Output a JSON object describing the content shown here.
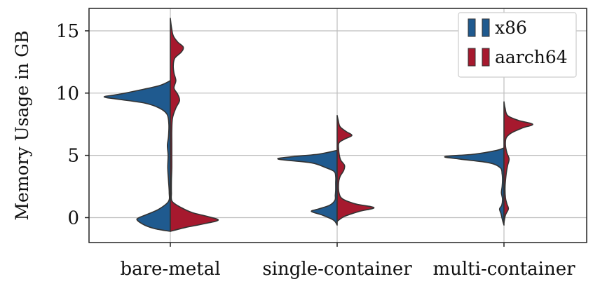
{
  "chart_data": {
    "type": "violin",
    "split": true,
    "ylabel": "Memory Usage in GB",
    "xlabel": "",
    "title": "",
    "ylim": [
      -2,
      16.8
    ],
    "yticks": [
      0,
      5,
      10,
      15
    ],
    "grid": true,
    "legend_position": "top-right",
    "categories": [
      "bare-metal",
      "single-container",
      "multi-container"
    ],
    "series": [
      {
        "name": "x86",
        "side": "left",
        "color": "#1f5a8f",
        "violins": [
          {
            "category": "bare-metal",
            "range": [
              -1.1,
              11.0
            ],
            "profile": [
              [
                -1.1,
                0.0
              ],
              [
                -0.9,
                0.04
              ],
              [
                -0.6,
                0.07
              ],
              [
                -0.2,
                0.09
              ],
              [
                0.0,
                0.085
              ],
              [
                0.3,
                0.06
              ],
              [
                0.7,
                0.03
              ],
              [
                1.3,
                0.005
              ],
              [
                2.0,
                0.003
              ],
              [
                3.0,
                0.005
              ],
              [
                4.0,
                0.007
              ],
              [
                5.0,
                0.006
              ],
              [
                5.8,
                0.008
              ],
              [
                6.5,
                0.005
              ],
              [
                7.5,
                0.004
              ],
              [
                8.3,
                0.009
              ],
              [
                8.8,
                0.03
              ],
              [
                9.2,
                0.07
              ],
              [
                9.5,
                0.14
              ],
              [
                9.7,
                0.18
              ],
              [
                9.9,
                0.14
              ],
              [
                10.2,
                0.09
              ],
              [
                10.6,
                0.03
              ],
              [
                11.0,
                0.0
              ]
            ]
          },
          {
            "category": "single-container",
            "range": [
              -0.6,
              5.4
            ],
            "profile": [
              [
                -0.6,
                0.0
              ],
              [
                -0.2,
                0.01
              ],
              [
                0.2,
                0.04
              ],
              [
                0.5,
                0.07
              ],
              [
                0.7,
                0.05
              ],
              [
                1.0,
                0.02
              ],
              [
                1.4,
                0.006
              ],
              [
                1.8,
                0.005
              ],
              [
                2.2,
                0.004
              ],
              [
                2.8,
                0.004
              ],
              [
                3.3,
                0.004
              ],
              [
                3.7,
                0.008
              ],
              [
                4.0,
                0.03
              ],
              [
                4.4,
                0.07
              ],
              [
                4.7,
                0.16
              ],
              [
                4.9,
                0.12
              ],
              [
                5.1,
                0.05
              ],
              [
                5.4,
                0.0
              ]
            ]
          },
          {
            "category": "multi-container",
            "range": [
              -0.6,
              5.6
            ],
            "profile": [
              [
                -0.6,
                0.0
              ],
              [
                -0.2,
                0.004
              ],
              [
                0.3,
                0.008
              ],
              [
                0.7,
                0.012
              ],
              [
                1.0,
                0.006
              ],
              [
                1.5,
                0.004
              ],
              [
                2.0,
                0.007
              ],
              [
                2.5,
                0.005
              ],
              [
                3.0,
                0.004
              ],
              [
                3.5,
                0.005
              ],
              [
                4.0,
                0.01
              ],
              [
                4.4,
                0.04
              ],
              [
                4.7,
                0.12
              ],
              [
                4.9,
                0.16
              ],
              [
                5.1,
                0.08
              ],
              [
                5.4,
                0.02
              ],
              [
                5.6,
                0.0
              ]
            ]
          }
        ]
      },
      {
        "name": "aarch64",
        "side": "right",
        "color": "#a6192e",
        "violins": [
          {
            "category": "bare-metal",
            "range": [
              -1.1,
              16.0
            ],
            "profile": [
              [
                -1.1,
                0.0
              ],
              [
                -0.8,
                0.04
              ],
              [
                -0.5,
                0.09
              ],
              [
                -0.2,
                0.13
              ],
              [
                0.1,
                0.1
              ],
              [
                0.4,
                0.06
              ],
              [
                0.8,
                0.03
              ],
              [
                1.3,
                0.005
              ],
              [
                2.0,
                0.003
              ],
              [
                3.0,
                0.003
              ],
              [
                4.0,
                0.004
              ],
              [
                5.0,
                0.004
              ],
              [
                6.0,
                0.004
              ],
              [
                7.0,
                0.004
              ],
              [
                8.0,
                0.006
              ],
              [
                8.8,
                0.015
              ],
              [
                9.4,
                0.025
              ],
              [
                9.9,
                0.02
              ],
              [
                10.4,
                0.01
              ],
              [
                11.0,
                0.015
              ],
              [
                11.6,
                0.01
              ],
              [
                12.2,
                0.008
              ],
              [
                12.8,
                0.012
              ],
              [
                13.3,
                0.03
              ],
              [
                13.7,
                0.035
              ],
              [
                14.1,
                0.02
              ],
              [
                14.6,
                0.008
              ],
              [
                15.3,
                0.003
              ],
              [
                16.0,
                0.0
              ]
            ]
          },
          {
            "category": "single-container",
            "range": [
              -0.3,
              8.2
            ],
            "profile": [
              [
                -0.3,
                0.0
              ],
              [
                0.1,
                0.02
              ],
              [
                0.5,
                0.06
              ],
              [
                0.8,
                0.1
              ],
              [
                1.1,
                0.05
              ],
              [
                1.5,
                0.015
              ],
              [
                2.0,
                0.005
              ],
              [
                2.8,
                0.004
              ],
              [
                3.3,
                0.008
              ],
              [
                3.8,
                0.018
              ],
              [
                4.2,
                0.02
              ],
              [
                4.6,
                0.01
              ],
              [
                5.0,
                0.006
              ],
              [
                5.5,
                0.004
              ],
              [
                6.0,
                0.005
              ],
              [
                6.3,
                0.02
              ],
              [
                6.6,
                0.04
              ],
              [
                6.9,
                0.025
              ],
              [
                7.3,
                0.008
              ],
              [
                7.8,
                0.003
              ],
              [
                8.2,
                0.0
              ]
            ]
          },
          {
            "category": "multi-container",
            "range": [
              -0.4,
              9.3
            ],
            "profile": [
              [
                -0.4,
                0.0
              ],
              [
                0.2,
                0.004
              ],
              [
                0.7,
                0.012
              ],
              [
                1.1,
                0.008
              ],
              [
                1.6,
                0.004
              ],
              [
                2.5,
                0.003
              ],
              [
                3.5,
                0.006
              ],
              [
                4.2,
                0.01
              ],
              [
                4.7,
                0.014
              ],
              [
                5.2,
                0.008
              ],
              [
                5.8,
                0.004
              ],
              [
                6.4,
                0.006
              ],
              [
                6.8,
                0.02
              ],
              [
                7.2,
                0.05
              ],
              [
                7.5,
                0.078
              ],
              [
                7.8,
                0.04
              ],
              [
                8.2,
                0.01
              ],
              [
                8.8,
                0.003
              ],
              [
                9.3,
                0.0
              ]
            ]
          }
        ]
      }
    ]
  }
}
